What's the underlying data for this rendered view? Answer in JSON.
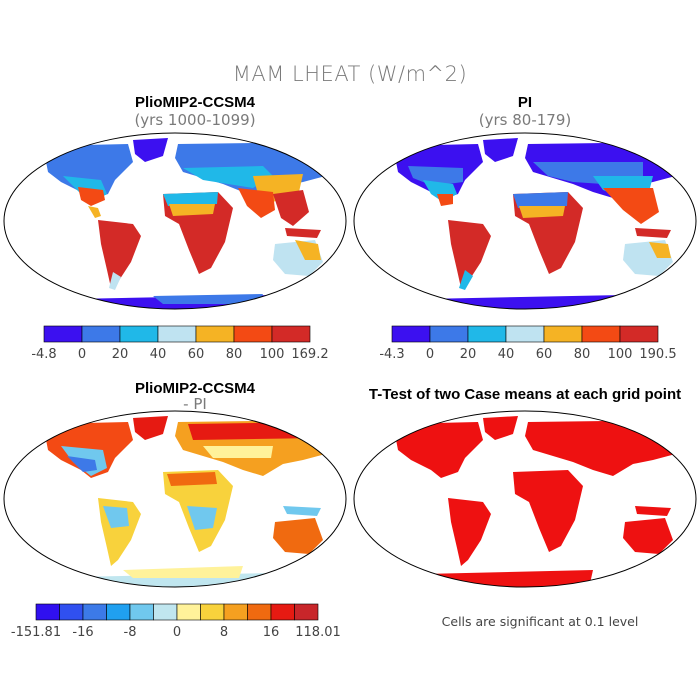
{
  "figure": {
    "title": "MAM LHEAT (W/m^2)"
  },
  "panels": [
    {
      "id": "p1",
      "title": "PlioMIP2-CCSM4",
      "subtitle": "(yrs 1000-1099)",
      "colorbar": {
        "colors": [
          "#3c10f0",
          "#3d79e8",
          "#20b8e8",
          "#bfe3f1",
          "#f5b324",
          "#f34a14",
          "#d32a27"
        ],
        "labels": [
          "-4.8",
          "0",
          "20",
          "40",
          "60",
          "80",
          "100",
          "169.2"
        ]
      }
    },
    {
      "id": "p2",
      "title": "PI",
      "subtitle": "(yrs 80-179)",
      "colorbar": {
        "colors": [
          "#3c10f0",
          "#3d79e8",
          "#20b8e8",
          "#bfe3f1",
          "#f5b324",
          "#f34a14",
          "#d32a27"
        ],
        "labels": [
          "-4.3",
          "0",
          "20",
          "40",
          "60",
          "80",
          "100",
          "190.5"
        ]
      }
    },
    {
      "id": "p3",
      "title": "PlioMIP2-CCSM4",
      "subtitle": "- PI",
      "colorbar": {
        "colors": [
          "#3010f0",
          "#3050f0",
          "#3c7ae8",
          "#20a0f0",
          "#70c8ee",
          "#c0e6ef",
          "#fff29a",
          "#f8d23c",
          "#f5a020",
          "#f06a10",
          "#e61a12",
          "#c8262a"
        ],
        "labels": [
          "-151.81",
          "-16",
          "-8",
          "0",
          "8",
          "16",
          "118.01"
        ]
      }
    },
    {
      "id": "p4",
      "title": "T-Test of two Case means at each grid point",
      "note": "Cells are significant at 0.1 level"
    }
  ]
}
